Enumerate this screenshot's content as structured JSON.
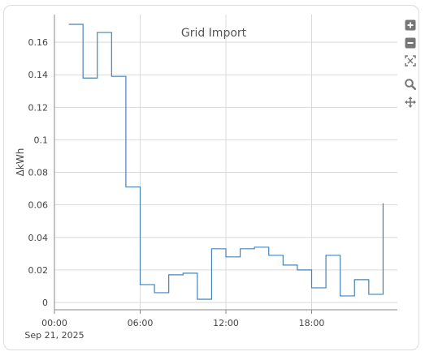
{
  "chart_data": {
    "type": "line",
    "step": "post",
    "title": "Grid Import",
    "xlabel": "",
    "ylabel": "ΔkWh",
    "x_start_label": "Sep 21, 2025",
    "x_ticks": [
      "00:00",
      "06:00",
      "12:00",
      "18:00"
    ],
    "y_ticks": [
      "0",
      "0.02",
      "0.04",
      "0.06",
      "0.08",
      "0.1",
      "0.12",
      "0.14",
      "0.16"
    ],
    "ylim": [
      -0.0045,
      0.177
    ],
    "xlim_hours": [
      0,
      24
    ],
    "grid": true,
    "series": [
      {
        "color": "#4682b4",
        "x_hours": [
          1,
          2,
          3,
          4,
          5,
          6,
          7,
          8,
          9,
          10,
          11,
          12,
          13,
          14,
          15,
          16,
          17,
          18,
          19,
          20,
          21,
          22,
          23
        ],
        "values": [
          0.171,
          0.138,
          0.166,
          0.139,
          0.071,
          0.011,
          0.006,
          0.017,
          0.018,
          0.002,
          0.033,
          0.028,
          0.033,
          0.034,
          0.029,
          0.023,
          0.02,
          0.009,
          0.029,
          0.004,
          0.014,
          0.005,
          0.061
        ]
      }
    ]
  },
  "toolbar": {
    "zoom_in_icon": "plus-square-icon",
    "zoom_out_icon": "minus-square-icon",
    "autoscale_icon": "autoscale-icon",
    "zoom_icon": "magnifier-icon",
    "pan_icon": "move-arrows-icon"
  }
}
